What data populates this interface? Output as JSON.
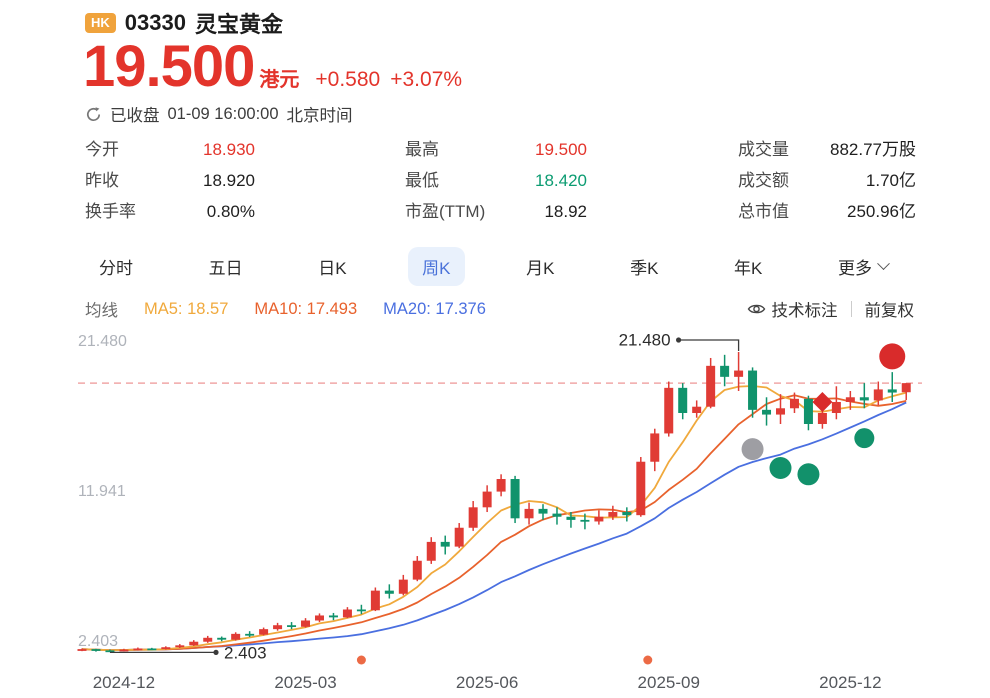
{
  "header": {
    "market_badge": "HK",
    "code": "03330",
    "name": "灵宝黄金",
    "price": "19.500",
    "currency": "港元",
    "change": "+0.580",
    "change_pct": "+3.07%",
    "status": "已收盘",
    "status_time": "01-09 16:00:00",
    "status_tz": "北京时间"
  },
  "stats": {
    "columns": [
      [
        {
          "label": "今开",
          "value": "18.930",
          "color": "red"
        },
        {
          "label": "昨收",
          "value": "18.920",
          "color": ""
        },
        {
          "label": "换手率",
          "value": "0.80%",
          "color": ""
        }
      ],
      [
        {
          "label": "最高",
          "value": "19.500",
          "color": "red"
        },
        {
          "label": "最低",
          "value": "18.420",
          "color": "green"
        },
        {
          "label": "市盈(TTM)",
          "value": "18.92",
          "color": ""
        }
      ],
      [
        {
          "label": "成交量",
          "value": "882.77万股",
          "color": ""
        },
        {
          "label": "成交额",
          "value": "1.70亿",
          "color": ""
        },
        {
          "label": "总市值",
          "value": "250.96亿",
          "color": ""
        }
      ]
    ]
  },
  "tabs": {
    "items": [
      {
        "label": "分时",
        "active": false,
        "chevron": false
      },
      {
        "label": "五日",
        "active": false,
        "chevron": false
      },
      {
        "label": "日K",
        "active": false,
        "chevron": false
      },
      {
        "label": "周K",
        "active": true,
        "chevron": false
      },
      {
        "label": "月K",
        "active": false,
        "chevron": false
      },
      {
        "label": "季K",
        "active": false,
        "chevron": false
      },
      {
        "label": "年K",
        "active": false,
        "chevron": false
      },
      {
        "label": "更多",
        "active": false,
        "chevron": true
      }
    ]
  },
  "ma_bar": {
    "title": "均线",
    "items": [
      {
        "label": "MA5: 18.57",
        "color": "#F0A93C"
      },
      {
        "label": "MA10: 17.493",
        "color": "#E8622D"
      },
      {
        "label": "MA20: 17.376",
        "color": "#4A6FE0"
      }
    ],
    "tech_label": "技术标注",
    "adjust_label": "前复权"
  },
  "chart_data": {
    "type": "candlestick",
    "period": "周K",
    "x_labels": [
      "2024-12",
      "2025-03",
      "2025-06",
      "2025-09",
      "2025-12"
    ],
    "x_label_weeks": [
      3,
      16,
      29,
      42,
      55
    ],
    "y_ticks": [
      "21.480",
      "11.941",
      "2.403"
    ],
    "y_range": [
      2.403,
      21.48
    ],
    "price_line": 19.5,
    "high_annotation": {
      "value": "21.480",
      "week": 47,
      "price": 21.48
    },
    "low_annotation": {
      "value": "2.403",
      "week": 2,
      "price": 2.403
    },
    "colors": {
      "up": "#E03B35",
      "down": "#10936C",
      "price_line": "#F0A8A8"
    },
    "ma_colors": {
      "ma5": "#F0A93C",
      "ma10": "#E8622D",
      "ma20": "#4A6FE0"
    },
    "candles": [
      [
        2.52,
        2.58,
        2.45,
        2.62
      ],
      [
        2.58,
        2.5,
        2.42,
        2.6
      ],
      [
        2.5,
        2.46,
        2.403,
        2.55
      ],
      [
        2.46,
        2.55,
        2.44,
        2.6
      ],
      [
        2.55,
        2.62,
        2.5,
        2.68
      ],
      [
        2.62,
        2.58,
        2.52,
        2.66
      ],
      [
        2.58,
        2.7,
        2.55,
        2.76
      ],
      [
        2.7,
        2.82,
        2.65,
        2.9
      ],
      [
        2.82,
        3.05,
        2.78,
        3.15
      ],
      [
        3.05,
        3.3,
        2.98,
        3.42
      ],
      [
        3.3,
        3.18,
        3.08,
        3.38
      ],
      [
        3.18,
        3.55,
        3.12,
        3.65
      ],
      [
        3.55,
        3.5,
        3.35,
        3.72
      ],
      [
        3.5,
        3.85,
        3.45,
        3.95
      ],
      [
        3.85,
        4.1,
        3.75,
        4.25
      ],
      [
        4.1,
        4.0,
        3.85,
        4.3
      ],
      [
        4.0,
        4.4,
        3.95,
        4.55
      ],
      [
        4.4,
        4.72,
        4.3,
        4.85
      ],
      [
        4.72,
        4.6,
        4.42,
        4.88
      ],
      [
        4.6,
        5.1,
        4.55,
        5.25
      ],
      [
        5.1,
        5.05,
        4.8,
        5.4
      ],
      [
        5.05,
        6.3,
        5.0,
        6.5
      ],
      [
        6.3,
        6.1,
        5.8,
        6.7
      ],
      [
        6.1,
        7.0,
        6.0,
        7.3
      ],
      [
        7.0,
        8.2,
        6.9,
        8.5
      ],
      [
        8.2,
        9.4,
        8.0,
        9.7
      ],
      [
        9.4,
        9.1,
        8.6,
        9.8
      ],
      [
        9.1,
        10.3,
        9.0,
        10.6
      ],
      [
        10.3,
        11.6,
        10.1,
        12.0
      ],
      [
        11.6,
        12.6,
        11.3,
        13.0
      ],
      [
        12.6,
        13.4,
        12.3,
        13.7
      ],
      [
        13.4,
        10.9,
        10.6,
        13.6
      ],
      [
        10.9,
        11.5,
        10.5,
        11.9
      ],
      [
        11.5,
        11.2,
        10.8,
        11.8
      ],
      [
        11.2,
        11.0,
        10.5,
        11.6
      ],
      [
        11.0,
        10.8,
        10.3,
        11.3
      ],
      [
        10.8,
        10.7,
        10.2,
        11.2
      ],
      [
        10.7,
        11.0,
        10.5,
        11.4
      ],
      [
        11.0,
        11.3,
        10.8,
        11.7
      ],
      [
        11.3,
        11.1,
        10.7,
        11.6
      ],
      [
        11.1,
        14.5,
        11.0,
        14.8
      ],
      [
        14.5,
        16.3,
        13.9,
        16.6
      ],
      [
        16.3,
        19.2,
        16.1,
        19.6
      ],
      [
        19.2,
        17.6,
        17.2,
        19.5
      ],
      [
        17.6,
        18.0,
        17.3,
        18.4
      ],
      [
        18.0,
        20.6,
        17.9,
        21.1
      ],
      [
        20.6,
        19.9,
        19.3,
        21.3
      ],
      [
        19.9,
        20.3,
        19.0,
        21.48
      ],
      [
        20.3,
        17.8,
        17.3,
        20.5
      ],
      [
        17.8,
        17.5,
        16.8,
        18.6
      ],
      [
        17.5,
        17.9,
        16.9,
        18.8
      ],
      [
        17.9,
        18.5,
        17.6,
        18.9
      ],
      [
        18.5,
        16.9,
        16.5,
        18.7
      ],
      [
        16.9,
        17.6,
        16.6,
        18.0
      ],
      [
        17.6,
        18.3,
        17.2,
        19.3
      ],
      [
        18.3,
        18.6,
        17.8,
        19.0
      ],
      [
        18.6,
        18.4,
        17.9,
        19.5
      ],
      [
        18.4,
        19.1,
        18.1,
        19.6
      ],
      [
        19.1,
        18.9,
        18.3,
        20.2
      ],
      [
        18.92,
        19.5,
        18.42,
        19.5
      ]
    ],
    "markers": [
      {
        "shape": "circle",
        "color": "#9E9EA3",
        "week": 48,
        "price": 15.3,
        "r": 11
      },
      {
        "shape": "circle",
        "color": "#12916B",
        "week": 50,
        "price": 14.1,
        "r": 11
      },
      {
        "shape": "circle",
        "color": "#12916B",
        "week": 52,
        "price": 13.7,
        "r": 11
      },
      {
        "shape": "circle",
        "color": "#12916B",
        "week": 56,
        "price": 16.0,
        "r": 10
      },
      {
        "shape": "circle",
        "color": "#D92B2B",
        "week": 58,
        "price": 21.2,
        "r": 13
      },
      {
        "shape": "diamond",
        "color": "#D92B2B",
        "week": 53,
        "price": 18.3,
        "r": 10
      }
    ],
    "axis_dots": [
      {
        "week": 20
      },
      {
        "week": 40.5
      }
    ]
  }
}
